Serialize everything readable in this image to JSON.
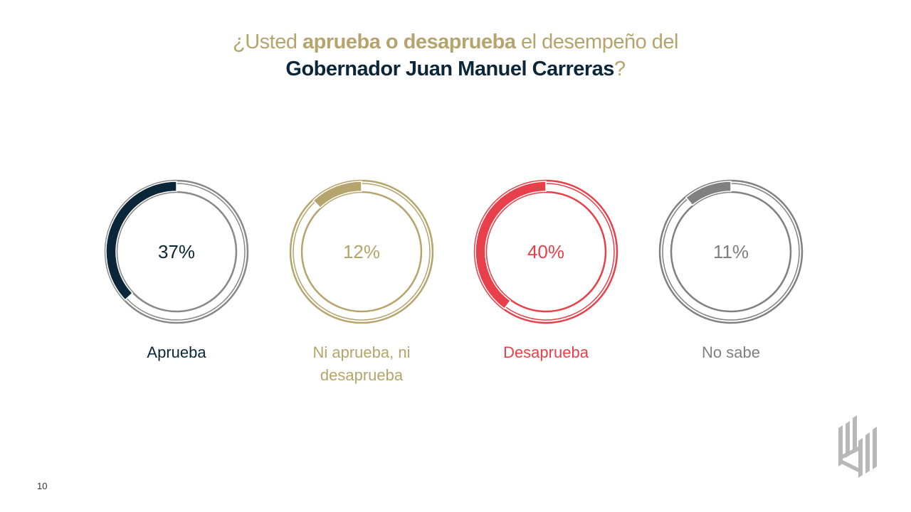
{
  "title": {
    "part1": "¿Usted ",
    "part2_bold": "aprueba o desaprueba",
    "part3": " el desempeño del",
    "line2_bold": "Gobernador Juan Manuel Carreras",
    "line2_end": "?"
  },
  "chart_data": {
    "type": "pie",
    "subtype": "donut-small-multiples",
    "title": "¿Usted aprueba o desaprueba el desempeño del Gobernador Juan Manuel Carreras?",
    "categories": [
      "Aprueba",
      "Ni aprueba, ni desaprueba",
      "Desaprueba",
      "No sabe"
    ],
    "values": [
      37,
      12,
      40,
      11
    ],
    "value_labels": [
      "37%",
      "12%",
      "40%",
      "11%"
    ],
    "colors": [
      "#0b2638",
      "#b5a46b",
      "#e8404a",
      "#808080"
    ]
  },
  "page_number": "10"
}
